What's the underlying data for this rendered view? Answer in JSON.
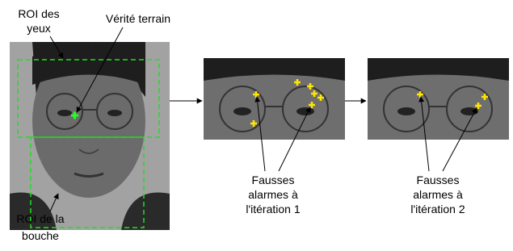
{
  "labels": {
    "roi_eyes": [
      "ROI des",
      "yeux"
    ],
    "ground_truth": "Vérité terrain",
    "false_alarms_1": [
      "Fausses",
      "alarmes à",
      "l'itération 1"
    ],
    "false_alarms_2": [
      "Fausses",
      "alarmes à",
      "l'itération 2"
    ],
    "roi_mouth": [
      "ROI de la",
      "bouche"
    ]
  }
}
